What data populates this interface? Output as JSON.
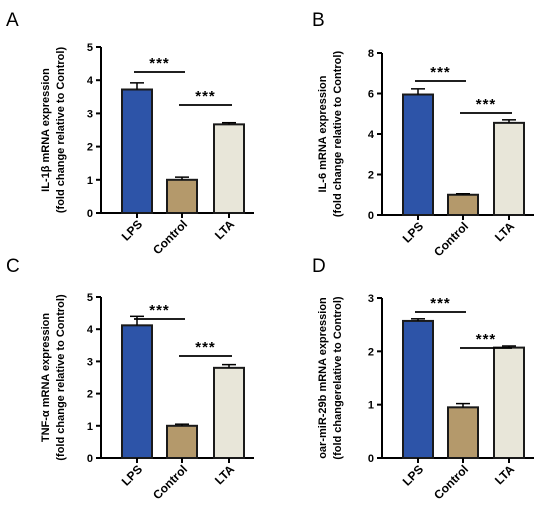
{
  "chart_data": [
    {
      "type": "bar",
      "panel": "A",
      "ylabel": "IL-1β mRNA expression",
      "ylabel2": "(fold change relative to Control)",
      "categories": [
        "LPS",
        "Control",
        "LTA"
      ],
      "values": [
        3.72,
        1.0,
        2.67
      ],
      "errors": [
        0.2,
        0.08,
        0.05
      ],
      "ylim": [
        0,
        5
      ],
      "yticks": [
        0,
        1,
        2,
        3,
        4,
        5
      ],
      "significance": [
        {
          "from": 0,
          "to": 1,
          "label": "***"
        },
        {
          "from": 1,
          "to": 2,
          "label": "***"
        }
      ]
    },
    {
      "type": "bar",
      "panel": "B",
      "ylabel": "IL-6 mRNA expression",
      "ylabel2": "(fold change relative to Control)",
      "categories": [
        "LPS",
        "Control",
        "LTA"
      ],
      "values": [
        5.95,
        1.0,
        4.55
      ],
      "errors": [
        0.28,
        0.05,
        0.15
      ],
      "ylim": [
        0,
        8
      ],
      "yticks": [
        0,
        2,
        4,
        6,
        8
      ],
      "significance": [
        {
          "from": 0,
          "to": 1,
          "label": "***"
        },
        {
          "from": 1,
          "to": 2,
          "label": "***"
        }
      ]
    },
    {
      "type": "bar",
      "panel": "C",
      "ylabel": "TNF-α mRNA expression",
      "ylabel2": "(fold change relative to Control)",
      "categories": [
        "LPS",
        "Control",
        "LTA"
      ],
      "values": [
        4.12,
        1.0,
        2.8
      ],
      "errors": [
        0.28,
        0.05,
        0.1
      ],
      "ylim": [
        0,
        5
      ],
      "yticks": [
        0,
        1,
        2,
        3,
        4,
        5
      ],
      "significance": [
        {
          "from": 0,
          "to": 1,
          "label": "***"
        },
        {
          "from": 1,
          "to": 2,
          "label": "***"
        }
      ]
    },
    {
      "type": "bar",
      "panel": "D",
      "ylabel": "oar-miR-29b mRNA expression",
      "ylabel2": "(fold changerelative to Control)",
      "categories": [
        "LPS",
        "Control",
        "LTA"
      ],
      "values": [
        2.57,
        0.95,
        2.07
      ],
      "errors": [
        0.04,
        0.07,
        0.03
      ],
      "ylim": [
        0,
        3
      ],
      "yticks": [
        0,
        1,
        2,
        3
      ],
      "significance": [
        {
          "from": 0,
          "to": 1,
          "label": "***"
        },
        {
          "from": 1,
          "to": 2,
          "label": "***"
        }
      ]
    }
  ],
  "style": {
    "bar_colors": [
      "#2d54a8",
      "#b4996b",
      "#e8e6d9"
    ],
    "bar_edge": "#1a1a1a",
    "axis_color": "#000000"
  }
}
